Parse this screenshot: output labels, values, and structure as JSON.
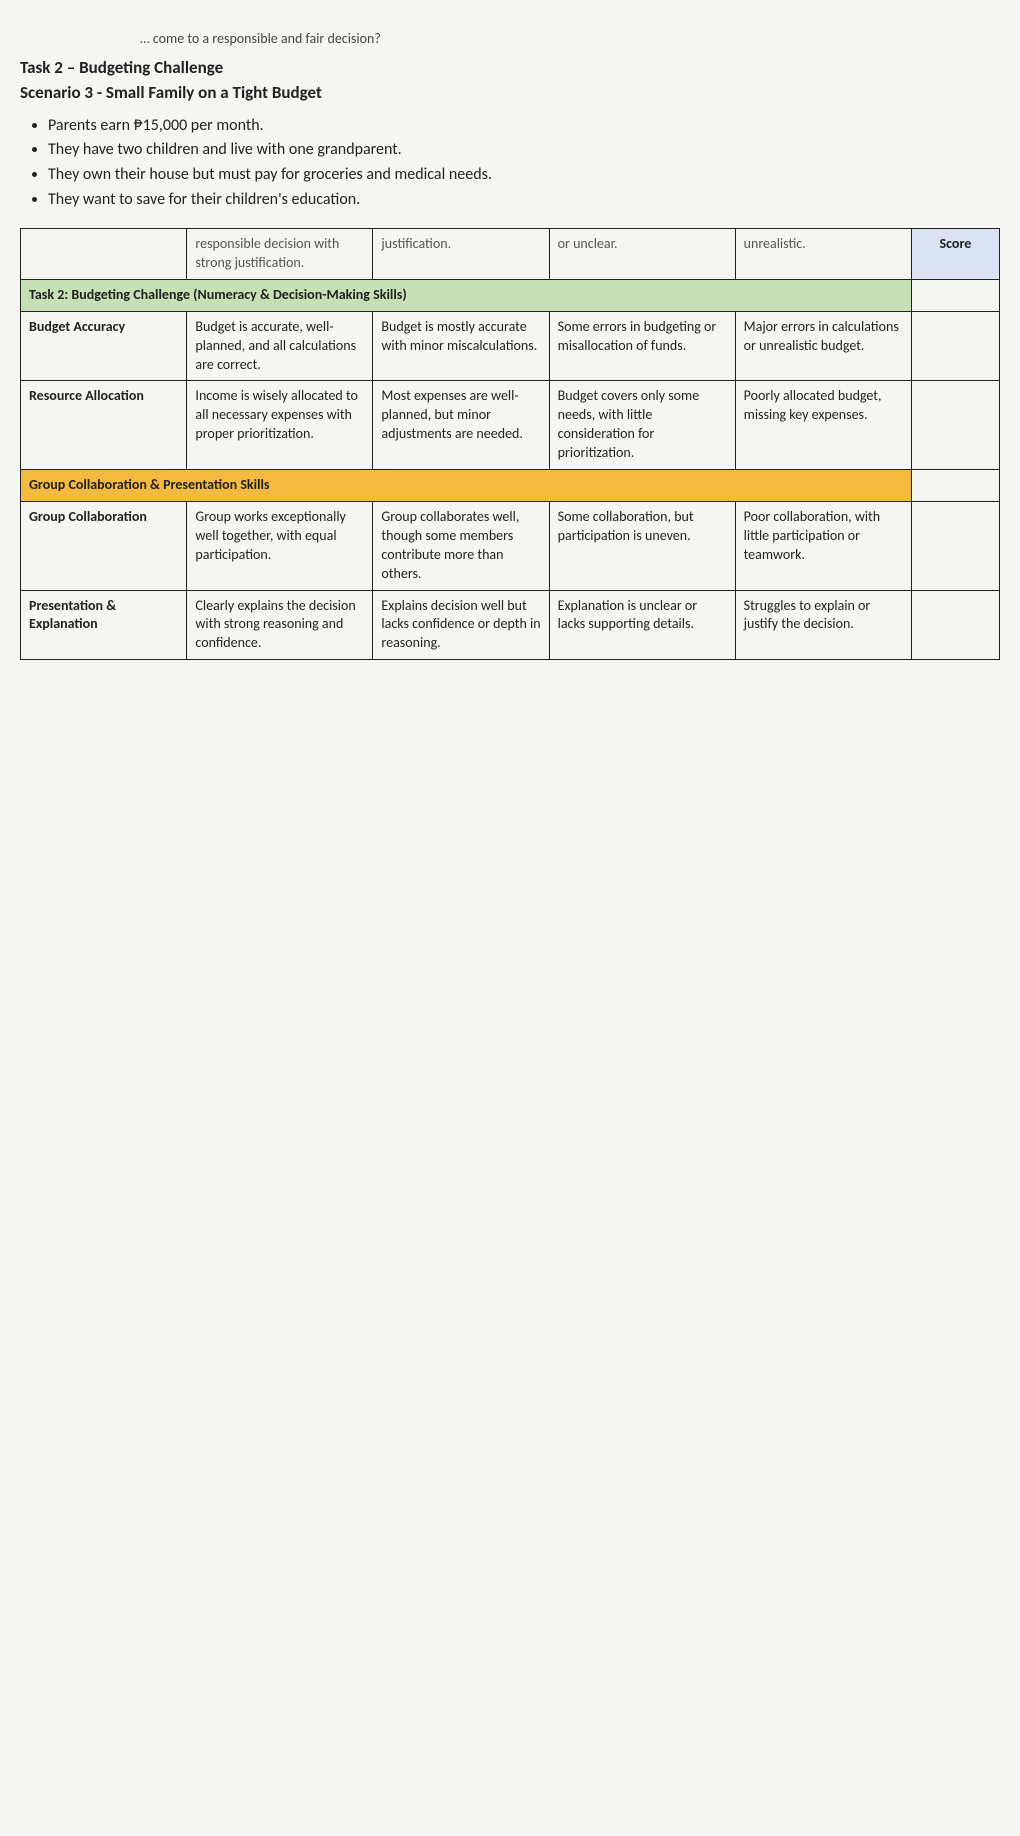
{
  "cutoff_line": "… come to a responsible and fair decision?",
  "task_title": "Task 2 – Budgeting Challenge",
  "scenario_title": "Scenario 3 - Small Family on a Tight Budget",
  "bullets": [
    "Parents earn ₱15,000 per month.",
    "They have two children and live with one grandparent.",
    "They own their house but must pay for groceries and medical needs.",
    "They want to save for their children's education."
  ],
  "score_header": "Score",
  "partial_row": {
    "label": "",
    "c1": "responsible decision with strong justification.",
    "c2": "justification.",
    "c3": "or unclear.",
    "c4": "unrealistic."
  },
  "section_task2": "Task 2: Budgeting Challenge (Numeracy & Decision-Making Skills)",
  "rows_task2": [
    {
      "label": "Budget Accuracy",
      "c1": "Budget is accurate, well-planned, and all calculations are correct.",
      "c2": "Budget is mostly accurate with minor miscalculations.",
      "c3": "Some errors in budgeting or misallocation of funds.",
      "c4": "Major errors in calculations or unrealistic budget."
    },
    {
      "label": "Resource Allocation",
      "c1": "Income is wisely allocated to all necessary expenses with proper prioritization.",
      "c2": "Most expenses are well-planned, but minor adjustments are needed.",
      "c3": "Budget covers only some needs, with little consideration for prioritization.",
      "c4": "Poorly allocated budget, missing key expenses."
    }
  ],
  "section_collab": "Group Collaboration & Presentation Skills",
  "rows_collab": [
    {
      "label": "Group Collaboration",
      "c1": "Group works exceptionally well together, with equal participation.",
      "c2": "Group collaborates well, though some members contribute more than others.",
      "c3": "Some collaboration, but participation is uneven.",
      "c4": "Poor collaboration, with little participation or teamwork."
    },
    {
      "label": "Presentation & Explanation",
      "c1": "Clearly explains the decision with strong reasoning and confidence.",
      "c2": "Explains decision well but lacks confidence or depth in reasoning.",
      "c3": "Explanation is unclear or lacks supporting details.",
      "c4": "Struggles to explain or justify the decision."
    }
  ]
}
